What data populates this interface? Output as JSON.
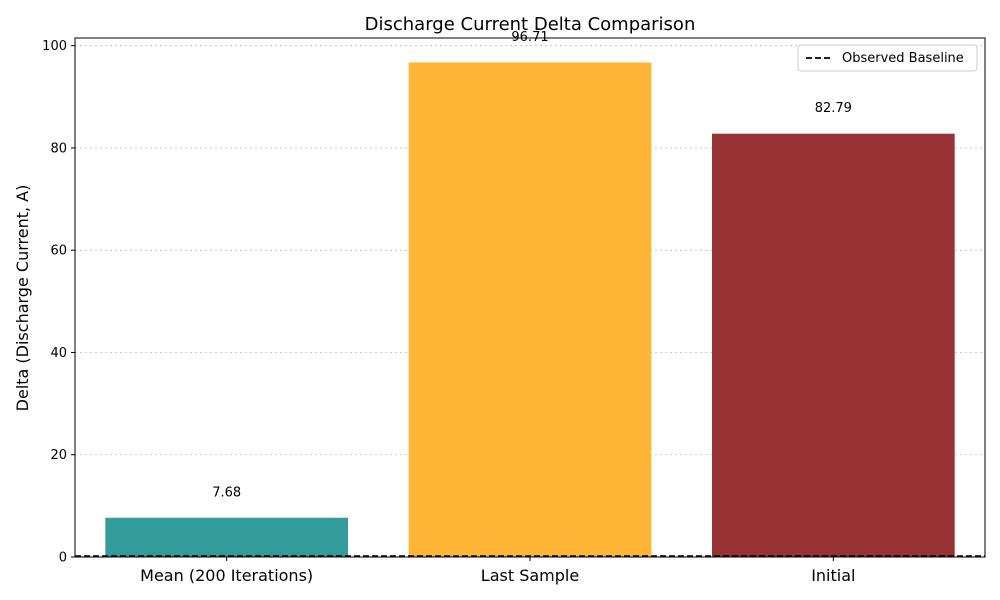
{
  "chart_data": {
    "type": "bar",
    "title": "Discharge Current Delta Comparison",
    "xlabel": "",
    "ylabel": "Delta (Discharge Current, A)",
    "categories": [
      "Mean (200 Iterations)",
      "Last Sample",
      "Initial"
    ],
    "values": [
      7.68,
      96.71,
      82.79
    ],
    "value_labels": [
      "7.68",
      "96.71",
      "82.79"
    ],
    "colors": [
      "#339b99",
      "#feb534",
      "#963234"
    ],
    "ylim": [
      0,
      101.5
    ],
    "yticks": [
      0,
      20,
      40,
      60,
      80,
      100
    ],
    "grid": "y-dotted",
    "baseline": {
      "name": "Observed Baseline",
      "value": 0.2,
      "style": "dashed",
      "color": "#000000"
    },
    "legend": {
      "position": "top-right",
      "entries": [
        "Observed Baseline"
      ]
    }
  }
}
